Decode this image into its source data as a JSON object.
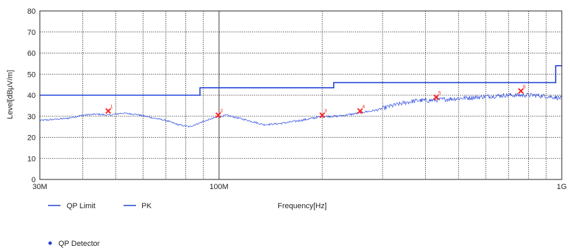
{
  "chart_data": {
    "type": "line",
    "xlabel": "Frequency[Hz]",
    "ylabel": "Level[dBμV/m]",
    "x_scale": "log",
    "xlim": [
      30,
      1000
    ],
    "ylim": [
      0,
      80
    ],
    "y_ticks": [
      0,
      10,
      20,
      30,
      40,
      50,
      60,
      70,
      80
    ],
    "y_tick_labels": [
      "0",
      "10",
      "20",
      "30",
      "40",
      "50",
      "60",
      "70",
      "80"
    ],
    "x_major_ticks": [
      30,
      100,
      1000
    ],
    "x_tick_labels": [
      "30M",
      "100M",
      "1G"
    ],
    "x_minor_ticks": [
      40,
      50,
      60,
      70,
      80,
      90,
      200,
      300,
      400,
      500,
      600,
      700,
      800,
      900
    ],
    "grid": true,
    "colors": {
      "limit": "#1f3fd6",
      "pk": "#2a48e0",
      "marker": "#ff2020",
      "grid": "#222222"
    },
    "series": [
      {
        "name": "QP Limit",
        "step": true,
        "x": [
          30,
          88,
          88,
          216,
          216,
          960,
          960,
          1000
        ],
        "values": [
          40,
          40,
          43.5,
          43.5,
          46,
          46,
          54,
          54
        ]
      },
      {
        "name": "PK",
        "x": [
          30,
          33,
          36,
          40,
          44,
          48,
          52,
          57,
          63,
          70,
          76,
          82,
          90,
          98,
          105,
          115,
          125,
          135,
          150,
          165,
          180,
          200,
          220,
          245,
          265,
          290,
          320,
          350,
          380,
          410,
          450,
          500,
          560,
          620,
          690,
          760,
          830,
          900,
          960,
          1000
        ],
        "values": [
          28,
          28.5,
          29,
          30.5,
          31,
          30.5,
          31.5,
          31,
          29.5,
          28,
          26,
          25,
          27.5,
          29.5,
          30.5,
          29,
          27.5,
          26,
          26.5,
          27.5,
          28.5,
          30,
          30,
          31,
          32,
          33,
          35,
          36.5,
          37.5,
          37.5,
          38,
          38.5,
          39,
          39.5,
          40,
          40,
          40,
          39.5,
          39,
          38.5
        ]
      }
    ],
    "qp_markers": [
      {
        "label": "1",
        "x": 47.5,
        "y": 32.5
      },
      {
        "label": "2",
        "x": 99.5,
        "y": 30.5
      },
      {
        "label": "3",
        "x": 200,
        "y": 30.5
      },
      {
        "label": "4",
        "x": 258,
        "y": 32.5
      },
      {
        "label": "5",
        "x": 430,
        "y": 39
      },
      {
        "label": "6",
        "x": 760,
        "y": 42
      }
    ],
    "legend": {
      "placement": "bottom-left",
      "items": [
        {
          "name": "QP Limit",
          "symbol": "line"
        },
        {
          "name": "PK",
          "symbol": "line"
        },
        {
          "name": "QP Detector",
          "symbol": "dot"
        }
      ]
    }
  }
}
